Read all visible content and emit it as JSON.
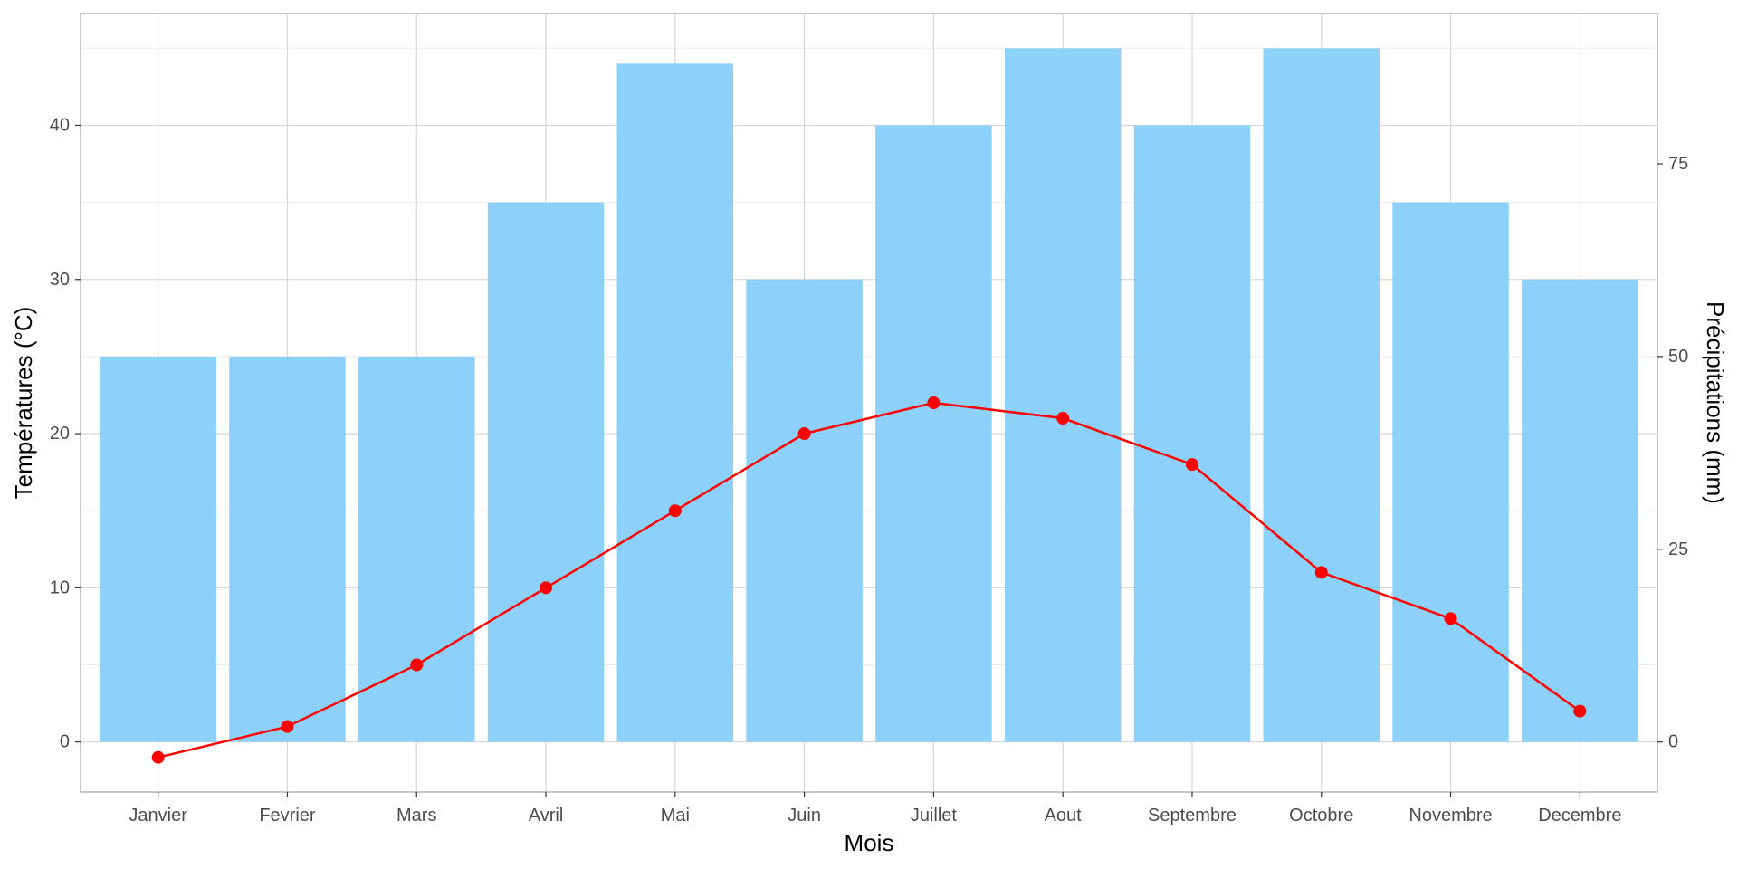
{
  "chart_data": {
    "type": "bar",
    "combo": "bar + line, dual y-axis",
    "categories": [
      "Janvier",
      "Fevrier",
      "Mars",
      "Avril",
      "Mai",
      "Juin",
      "Juillet",
      "Aout",
      "Septembre",
      "Octobre",
      "Novembre",
      "Decembre"
    ],
    "series": [
      {
        "kind": "bar",
        "axis": "right",
        "values": [
          50,
          50,
          50,
          70,
          88,
          60,
          80,
          90,
          80,
          90,
          70,
          60
        ],
        "color": "#87CEFA"
      },
      {
        "kind": "line",
        "axis": "left",
        "values": [
          -1,
          1,
          5,
          10,
          15,
          20,
          22,
          21,
          18,
          11,
          8,
          2
        ],
        "color": "#FF0000"
      }
    ],
    "xlabel": "Mois",
    "ylabel": "Températures (°C)",
    "y2label": "Précipitations (mm)",
    "ylim": [
      -3.25,
      47.25
    ],
    "y2lim": [
      -6.5,
      94.5
    ],
    "yticks": [
      0,
      10,
      20,
      30,
      40
    ],
    "y2ticks": [
      0,
      25,
      50,
      75
    ],
    "grid": true,
    "legend": "none"
  }
}
